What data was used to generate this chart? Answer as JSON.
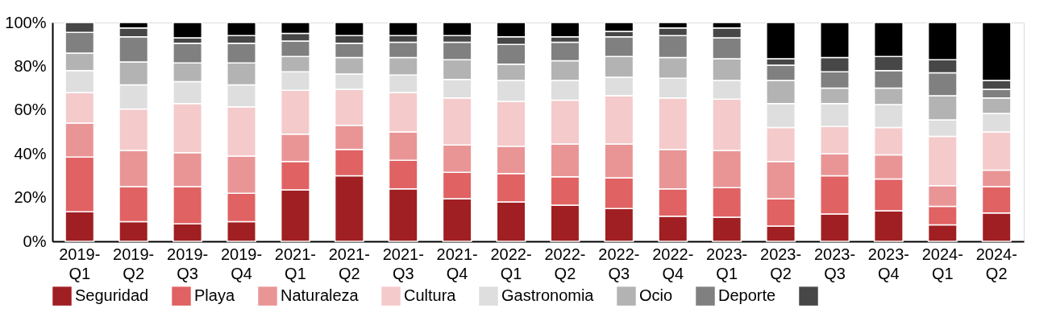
{
  "chart_data": {
    "type": "bar",
    "stacked": true,
    "categories": [
      "2019-Q1",
      "2019-Q2",
      "2019-Q3",
      "2019-Q4",
      "2021-Q1",
      "2021-Q2",
      "2021-Q3",
      "2021-Q4",
      "2022-Q1",
      "2022-Q2",
      "2022-Q3",
      "2022-Q4",
      "2023-Q1",
      "2023-Q2",
      "2023-Q3",
      "2023-Q4",
      "2024-Q1",
      "2024-Q2"
    ],
    "ylim": [
      0,
      100
    ],
    "yticks": [
      {
        "value": 0,
        "label": "0%"
      },
      {
        "value": 20,
        "label": "20%"
      },
      {
        "value": 40,
        "label": "40%"
      },
      {
        "value": 60,
        "label": "60%"
      },
      {
        "value": 80,
        "label": "80%"
      },
      {
        "value": 100,
        "label": "100%"
      }
    ],
    "grid": false,
    "legend": "bottom",
    "series": [
      {
        "name": "Seguridad",
        "color": "#a01f22",
        "values": [
          13.5,
          9,
          8,
          9,
          23.5,
          30,
          24,
          19.5,
          18,
          16.5,
          15,
          11.5,
          11,
          7,
          12.5,
          14,
          7.5,
          13
        ]
      },
      {
        "name": "Playa",
        "color": "#e06263",
        "values": [
          25,
          16,
          17,
          13,
          13,
          12,
          13,
          12,
          13,
          13,
          14,
          12.5,
          13.5,
          12.5,
          17.5,
          14.5,
          8.5,
          12
        ]
      },
      {
        "name": "Naturaleza",
        "color": "#e99596",
        "values": [
          15.5,
          16.5,
          15.5,
          17,
          12.5,
          11,
          13,
          12.5,
          12.5,
          15,
          15.5,
          18,
          17,
          17,
          10,
          11,
          9.5,
          7.5
        ]
      },
      {
        "name": "Cultura",
        "color": "#f4cacb",
        "values": [
          14,
          19,
          22.5,
          22.5,
          20,
          16.5,
          18,
          21.5,
          20.5,
          20,
          22,
          23.5,
          23.5,
          15.5,
          12.5,
          12.5,
          22.5,
          17.5
        ]
      },
      {
        "name": "Gastronomia",
        "color": "#dedede",
        "values": [
          10,
          11,
          10,
          10,
          8.5,
          7,
          8,
          8.5,
          9.5,
          9,
          8.5,
          9,
          8.5,
          11,
          10.5,
          10.5,
          7.5,
          8.5
        ]
      },
      {
        "name": "Ocio",
        "color": "#b3b3b3",
        "values": [
          8,
          10.5,
          8.5,
          10,
          7,
          7.5,
          8,
          9,
          7.5,
          9,
          9.5,
          9.5,
          10,
          10.5,
          7,
          7.5,
          11,
          7
        ]
      },
      {
        "name": "Deporte",
        "color": "#808080",
        "values": [
          9.5,
          11.5,
          9,
          9,
          7,
          6.5,
          7,
          8,
          9,
          8.5,
          9,
          10,
          9.5,
          7,
          7.5,
          8,
          10.5,
          4
        ]
      },
      {
        "name": null,
        "color": "#474747",
        "values": [
          4.5,
          4,
          2.5,
          3.5,
          3.5,
          3.5,
          3,
          3,
          3.5,
          2.5,
          2.5,
          3.5,
          4.5,
          3,
          6.5,
          6.5,
          6,
          4
        ]
      },
      {
        "color": "#000000",
        "values": [
          null,
          2.5,
          7,
          6,
          5,
          6,
          6,
          6,
          6.5,
          6.5,
          4,
          2.5,
          2.5,
          16.5,
          16,
          15.5,
          17,
          26.5
        ]
      }
    ]
  }
}
